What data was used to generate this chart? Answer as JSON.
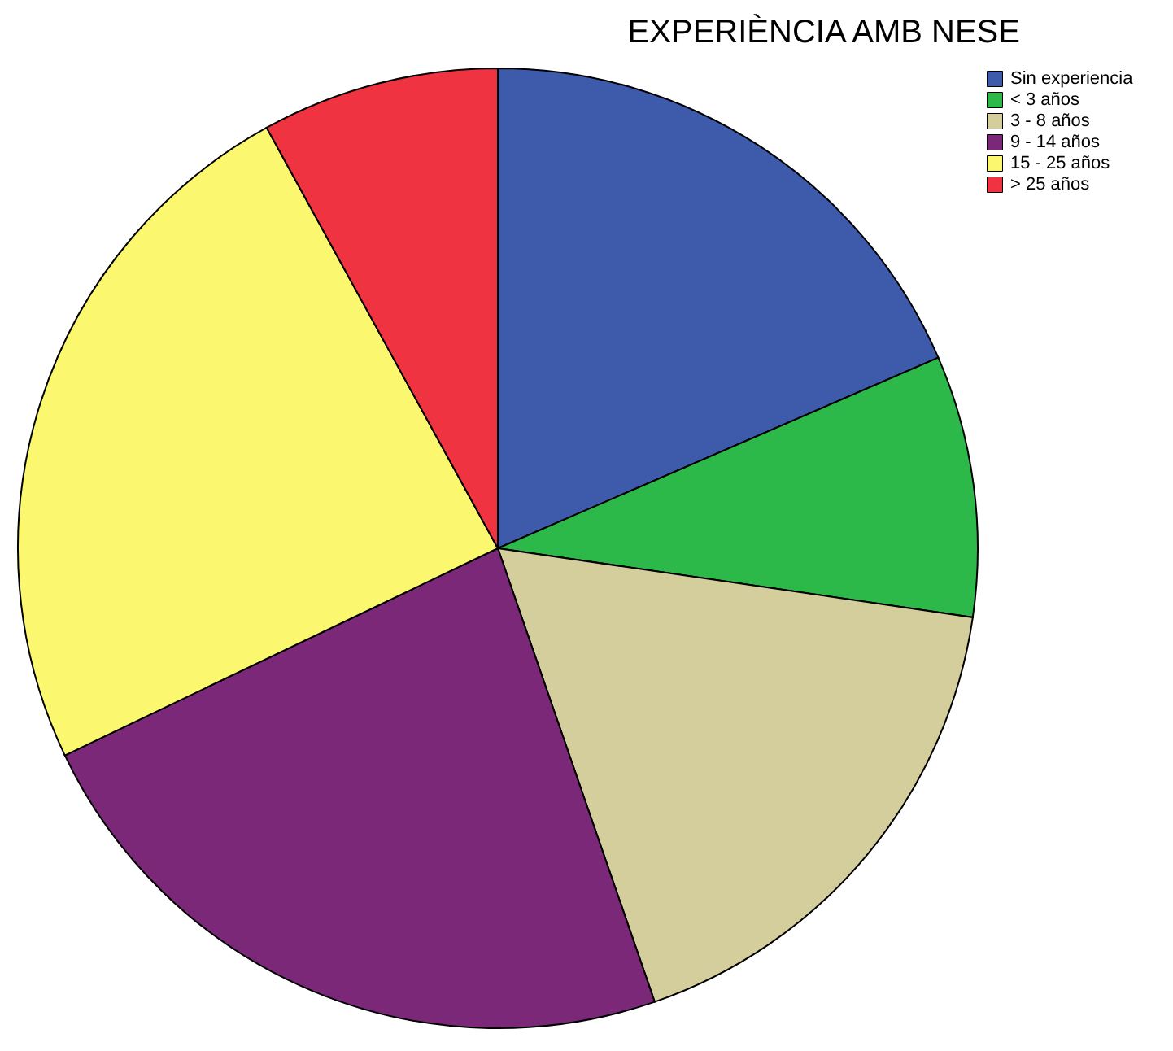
{
  "chart_data": {
    "type": "pie",
    "title": "EXPERIÈNCIA AMB NESE",
    "categories": [
      "Sin experiencia",
      "< 3 años",
      "3 - 8 años",
      "9 - 14 años",
      "15 - 25 años",
      "> 25 años"
    ],
    "values": [
      18.5,
      8.8,
      17.4,
      23.2,
      24.1,
      8.0
    ],
    "colors": [
      "#3d5aab",
      "#2db84a",
      "#d3ce9b",
      "#7b2878",
      "#fbf76e",
      "#ef3340"
    ],
    "legend": "top right"
  }
}
